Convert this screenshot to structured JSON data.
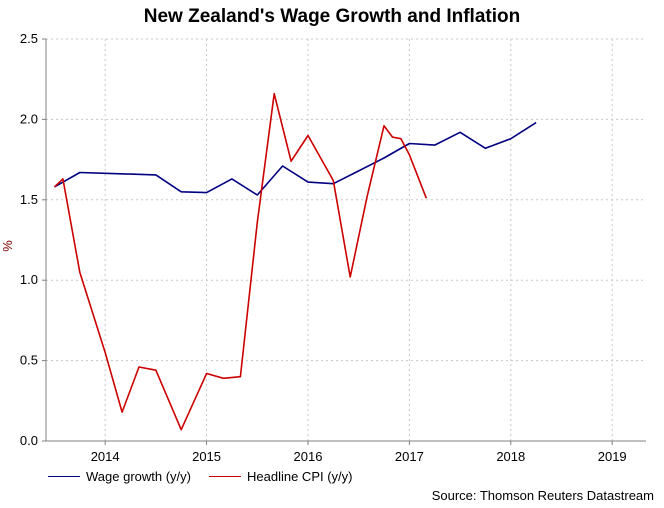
{
  "chart_data": {
    "type": "line",
    "title": "New Zealand's Wage Growth and Inflation",
    "ylabel": "%",
    "xlabel": "",
    "ylim": [
      0.0,
      2.5
    ],
    "yticks": [
      "0.0",
      "0.5",
      "1.0",
      "1.5",
      "2.0",
      "2.5"
    ],
    "xlim": [
      "2013-08",
      "2019-07"
    ],
    "xticks": [
      {
        "label": "2014",
        "date": "2014-03"
      },
      {
        "label": "2015",
        "date": "2015-03"
      },
      {
        "label": "2016",
        "date": "2016-03"
      },
      {
        "label": "2017",
        "date": "2017-03"
      },
      {
        "label": "2018",
        "date": "2018-03"
      },
      {
        "label": "2019",
        "date": "2019-03"
      }
    ],
    "grid": true,
    "legend_position": "bottom-left",
    "series": [
      {
        "name": "Wage growth (y/y)",
        "color": "#000080",
        "points": [
          [
            "2013-09",
            1.58
          ],
          [
            "2013-12",
            1.67
          ],
          [
            "2014-03",
            1.665
          ],
          [
            "2014-06",
            1.66
          ],
          [
            "2014-09",
            1.655
          ],
          [
            "2014-12",
            1.55
          ],
          [
            "2015-03",
            1.545
          ],
          [
            "2015-06",
            1.63
          ],
          [
            "2015-09",
            1.53
          ],
          [
            "2015-12",
            1.71
          ],
          [
            "2016-03",
            1.61
          ],
          [
            "2016-06",
            1.6
          ],
          [
            "2016-09",
            1.68
          ],
          [
            "2016-12",
            1.76
          ],
          [
            "2017-03",
            1.85
          ],
          [
            "2017-06",
            1.84
          ],
          [
            "2017-09",
            1.92
          ],
          [
            "2017-12",
            1.82
          ],
          [
            "2018-03",
            1.88
          ],
          [
            "2018-06",
            1.98
          ]
        ]
      },
      {
        "name": "Headline CPI (y/y)",
        "color": "#cc0000",
        "points": [
          [
            "2013-09",
            1.58
          ],
          [
            "2013-10",
            1.63
          ],
          [
            "2013-12",
            1.05
          ],
          [
            "2014-03",
            0.55
          ],
          [
            "2014-05",
            0.18
          ],
          [
            "2014-07",
            0.46
          ],
          [
            "2014-09",
            0.44
          ],
          [
            "2014-12",
            0.07
          ],
          [
            "2015-03",
            0.42
          ],
          [
            "2015-05",
            0.39
          ],
          [
            "2015-07",
            0.4
          ],
          [
            "2015-09",
            1.36
          ],
          [
            "2015-11",
            2.16
          ],
          [
            "2016-01",
            1.74
          ],
          [
            "2016-03",
            1.9
          ],
          [
            "2016-06",
            1.62
          ],
          [
            "2016-08",
            1.02
          ],
          [
            "2016-10",
            1.52
          ],
          [
            "2016-12",
            1.96
          ],
          [
            "2017-01",
            1.89
          ],
          [
            "2017-02",
            1.88
          ],
          [
            "2017-03",
            1.78
          ],
          [
            "2017-05",
            1.51
          ]
        ]
      }
    ],
    "source": "Source: Thomson Reuters Datastream"
  }
}
